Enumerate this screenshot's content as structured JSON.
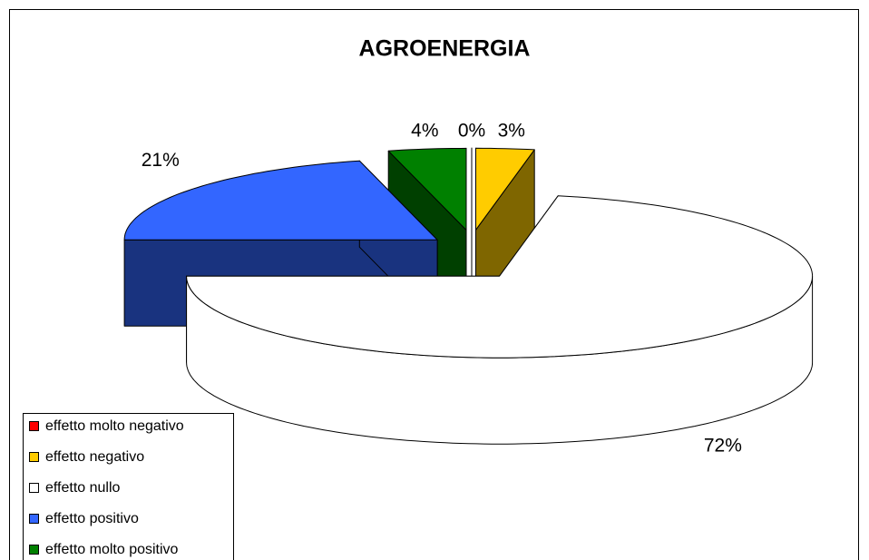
{
  "chart_data": {
    "type": "pie3d",
    "title": "AGROENERGIA",
    "categories": [
      "effetto molto negativo",
      "effetto negativo",
      "effetto nullo",
      "effetto positivo",
      "effetto molto positivo"
    ],
    "values": [
      0,
      3,
      72,
      21,
      4
    ],
    "value_labels": [
      "0%",
      "3%",
      "72%",
      "21%",
      "4%"
    ],
    "colors": [
      "#ff0000",
      "#ffcc00",
      "#ffffff",
      "#3366ff",
      "#008000"
    ],
    "legend": "bottom-left"
  }
}
